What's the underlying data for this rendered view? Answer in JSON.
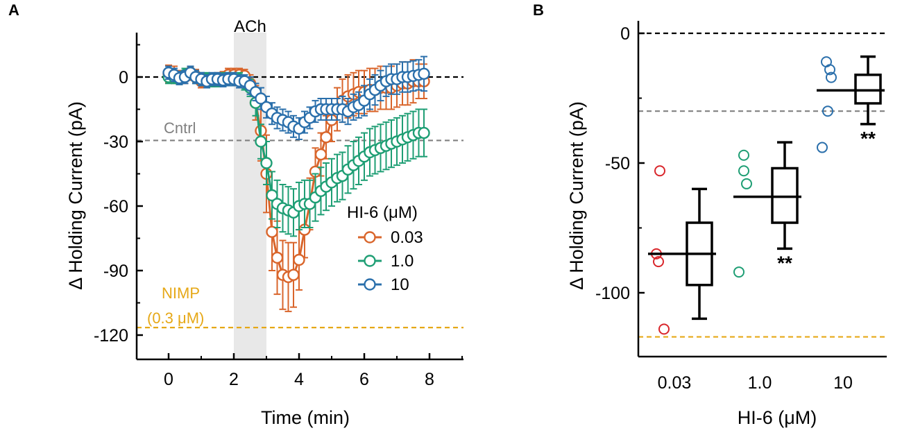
{
  "panels": {
    "a": "A",
    "b": "B"
  },
  "colors": {
    "orange": "#d9652b",
    "green": "#1e9e74",
    "blue": "#2a6fab",
    "cntrl": "#808080",
    "nimp": "#e6a817",
    "red": "#d9262b",
    "shade": "#e8e8e8"
  },
  "chart_data": [
    {
      "type": "line",
      "title": "",
      "xlabel": "Time (min)",
      "ylabel": "Δ Holding Current (pA)",
      "xlim": [
        -1,
        9
      ],
      "ylim": [
        -130,
        20
      ],
      "xticks": [
        0,
        2,
        4,
        6,
        8
      ],
      "yticks": [
        0,
        -30,
        -60,
        -90,
        -120
      ],
      "ytick_labels": [
        "0",
        "-30",
        "-60",
        "-90",
        "-120"
      ],
      "xtick_labels": [
        "0",
        "2",
        "4",
        "6",
        "8"
      ],
      "shaded_region": {
        "x": [
          2,
          3
        ],
        "label": "ACh"
      },
      "reference_lines": [
        {
          "name": "zero",
          "y": 0,
          "label": ""
        },
        {
          "name": "cntrl",
          "y": -29.5,
          "label": "Cntrl"
        },
        {
          "name": "nimp",
          "y": -116.5,
          "label": "NIMP",
          "sublabel": "(0.3 μM)"
        }
      ],
      "legend": {
        "title": "HI-6 (μM)",
        "entries": [
          "0.03",
          "1.0",
          "10"
        ],
        "placement": "center-right"
      },
      "series": [
        {
          "name": "0.03",
          "color": "orange",
          "x": [
            0,
            0.17,
            0.33,
            0.5,
            0.67,
            0.83,
            1,
            1.17,
            1.33,
            1.5,
            1.67,
            1.83,
            2,
            2.17,
            2.33,
            2.5,
            2.67,
            2.83,
            3,
            3.17,
            3.33,
            3.5,
            3.67,
            3.83,
            4,
            4.17,
            4.33,
            4.5,
            4.67,
            4.83,
            5,
            5.17,
            5.33,
            5.5,
            5.67,
            5.83,
            6,
            6.17,
            6.33,
            6.5,
            6.67,
            6.83,
            7,
            7.17,
            7.33,
            7.5,
            7.67,
            7.83
          ],
          "y": [
            1.5,
            1,
            0,
            0,
            1.5,
            0.5,
            -2,
            -1.5,
            -1.5,
            -1,
            -0.5,
            1,
            1,
            1,
            0.5,
            -3,
            -12,
            -25,
            -45,
            -72,
            -84,
            -92,
            -93,
            -92,
            -85,
            -71,
            -59,
            -44,
            -36,
            -28,
            -20,
            -15,
            -11,
            -9,
            -8,
            -7,
            -7,
            -6,
            -6,
            -5,
            -5,
            -5,
            -4,
            -3,
            -3,
            -2,
            -2,
            -2
          ],
          "err": [
            4,
            4,
            3,
            3,
            3,
            3,
            3,
            3,
            3,
            3,
            3,
            3,
            3,
            3,
            3,
            4,
            8,
            14,
            18,
            18,
            17,
            16,
            16,
            15,
            14,
            13,
            12,
            11,
            10,
            10,
            10,
            10,
            10,
            10,
            10,
            10,
            10,
            10,
            10,
            10,
            10,
            10,
            10,
            10,
            10,
            10,
            8,
            8
          ]
        },
        {
          "name": "1.0",
          "color": "green",
          "x": [
            0,
            0.17,
            0.33,
            0.5,
            0.67,
            0.83,
            1,
            1.17,
            1.33,
            1.5,
            1.67,
            1.83,
            2,
            2.17,
            2.33,
            2.5,
            2.67,
            2.83,
            3,
            3.17,
            3.33,
            3.5,
            3.67,
            3.83,
            4,
            4.17,
            4.33,
            4.5,
            4.67,
            4.83,
            5,
            5.17,
            5.33,
            5.5,
            5.67,
            5.83,
            6,
            6.17,
            6.33,
            6.5,
            6.67,
            6.83,
            7,
            7.17,
            7.33,
            7.5,
            7.67,
            7.83
          ],
          "y": [
            0,
            0,
            -0.5,
            1,
            2,
            0,
            -1,
            -1,
            -1.5,
            -1.5,
            -1,
            -1,
            -1,
            -1,
            -3,
            -5,
            -12,
            -30,
            -40,
            -55,
            -59,
            -61,
            -62,
            -63,
            -60,
            -59,
            -59,
            -56,
            -53,
            -51,
            -49,
            -47,
            -46,
            -43,
            -41,
            -39,
            -37,
            -35,
            -34,
            -33,
            -32,
            -31,
            -30,
            -29,
            -28,
            -27,
            -26,
            -26
          ],
          "err": [
            3,
            3,
            3,
            3,
            3,
            3,
            3,
            3,
            3,
            3,
            3,
            3,
            3,
            3,
            3,
            4,
            6,
            8,
            10,
            11,
            11,
            11,
            11,
            11,
            11,
            11,
            11,
            11,
            11,
            11,
            11,
            11,
            11,
            11,
            11,
            11,
            11,
            11,
            11,
            11,
            11,
            11,
            11,
            11,
            11,
            11,
            11,
            11
          ]
        },
        {
          "name": "10",
          "color": "blue",
          "x": [
            0,
            0.17,
            0.33,
            0.5,
            0.67,
            0.83,
            1,
            1.17,
            1.33,
            1.5,
            1.67,
            1.83,
            2,
            2.17,
            2.33,
            2.5,
            2.67,
            2.83,
            3,
            3.17,
            3.33,
            3.5,
            3.67,
            3.83,
            4,
            4.17,
            4.33,
            4.5,
            4.67,
            4.83,
            5,
            5.17,
            5.33,
            5.5,
            5.67,
            5.83,
            6,
            6.17,
            6.33,
            6.5,
            6.67,
            6.83,
            7,
            7.17,
            7.33,
            7.5,
            7.67,
            7.83
          ],
          "y": [
            2,
            1,
            -0.5,
            0,
            2,
            0,
            -1,
            -2,
            -1,
            -1,
            -1.5,
            -1,
            -1,
            -2,
            -2,
            -4,
            -7,
            -10,
            -14,
            -17,
            -19,
            -20,
            -21,
            -23,
            -24,
            -21,
            -19,
            -16,
            -15,
            -15,
            -15,
            -15,
            -15,
            -16,
            -14,
            -13,
            -11,
            -8,
            -6,
            -4,
            -2,
            -1,
            -1,
            0,
            0,
            0.5,
            1,
            1.5
          ],
          "err": [
            3,
            3,
            3,
            3,
            3,
            3,
            3,
            3,
            3,
            3,
            3,
            3,
            3,
            3,
            3,
            4,
            4,
            5,
            5,
            5,
            5,
            5,
            5,
            5,
            5,
            5,
            5,
            5,
            5,
            5,
            5,
            5,
            6,
            6,
            6,
            6,
            7,
            7,
            7,
            7,
            7,
            7,
            7,
            7,
            7,
            7,
            7,
            8
          ]
        }
      ]
    },
    {
      "type": "box",
      "title": "",
      "xlabel": "HI-6 (μM)",
      "ylabel": "Δ Holding Current (pA)",
      "ylim": [
        -125,
        5
      ],
      "yticks": [
        0,
        -50,
        -100
      ],
      "ytick_labels": [
        "0",
        "-50",
        "-100"
      ],
      "categories": [
        "0.03",
        "1.0",
        "10"
      ],
      "reference_lines": [
        {
          "name": "zero",
          "y": 0
        },
        {
          "name": "cntrl",
          "y": -30
        },
        {
          "name": "nimp",
          "y": -117
        }
      ],
      "groups": [
        {
          "category": "0.03",
          "points_color": "red",
          "points": [
            -53,
            -85,
            -88,
            -114
          ],
          "mean": -85,
          "q1": -97,
          "q3": -73,
          "median": -85,
          "whisker_low": -110,
          "whisker_high": -60,
          "significance": ""
        },
        {
          "category": "1.0",
          "points_color": "green",
          "points": [
            -47,
            -53,
            -58,
            -92
          ],
          "mean": -63,
          "q1": -73,
          "q3": -52,
          "median": -63,
          "whisker_low": -83,
          "whisker_high": -42,
          "significance": "**"
        },
        {
          "category": "10",
          "points_color": "blue",
          "points": [
            -11,
            -14,
            -17,
            -30,
            -44
          ],
          "mean": -22,
          "q1": -27,
          "q3": -16,
          "median": -22,
          "whisker_low": -35,
          "whisker_high": -9,
          "significance": "**"
        }
      ]
    }
  ]
}
